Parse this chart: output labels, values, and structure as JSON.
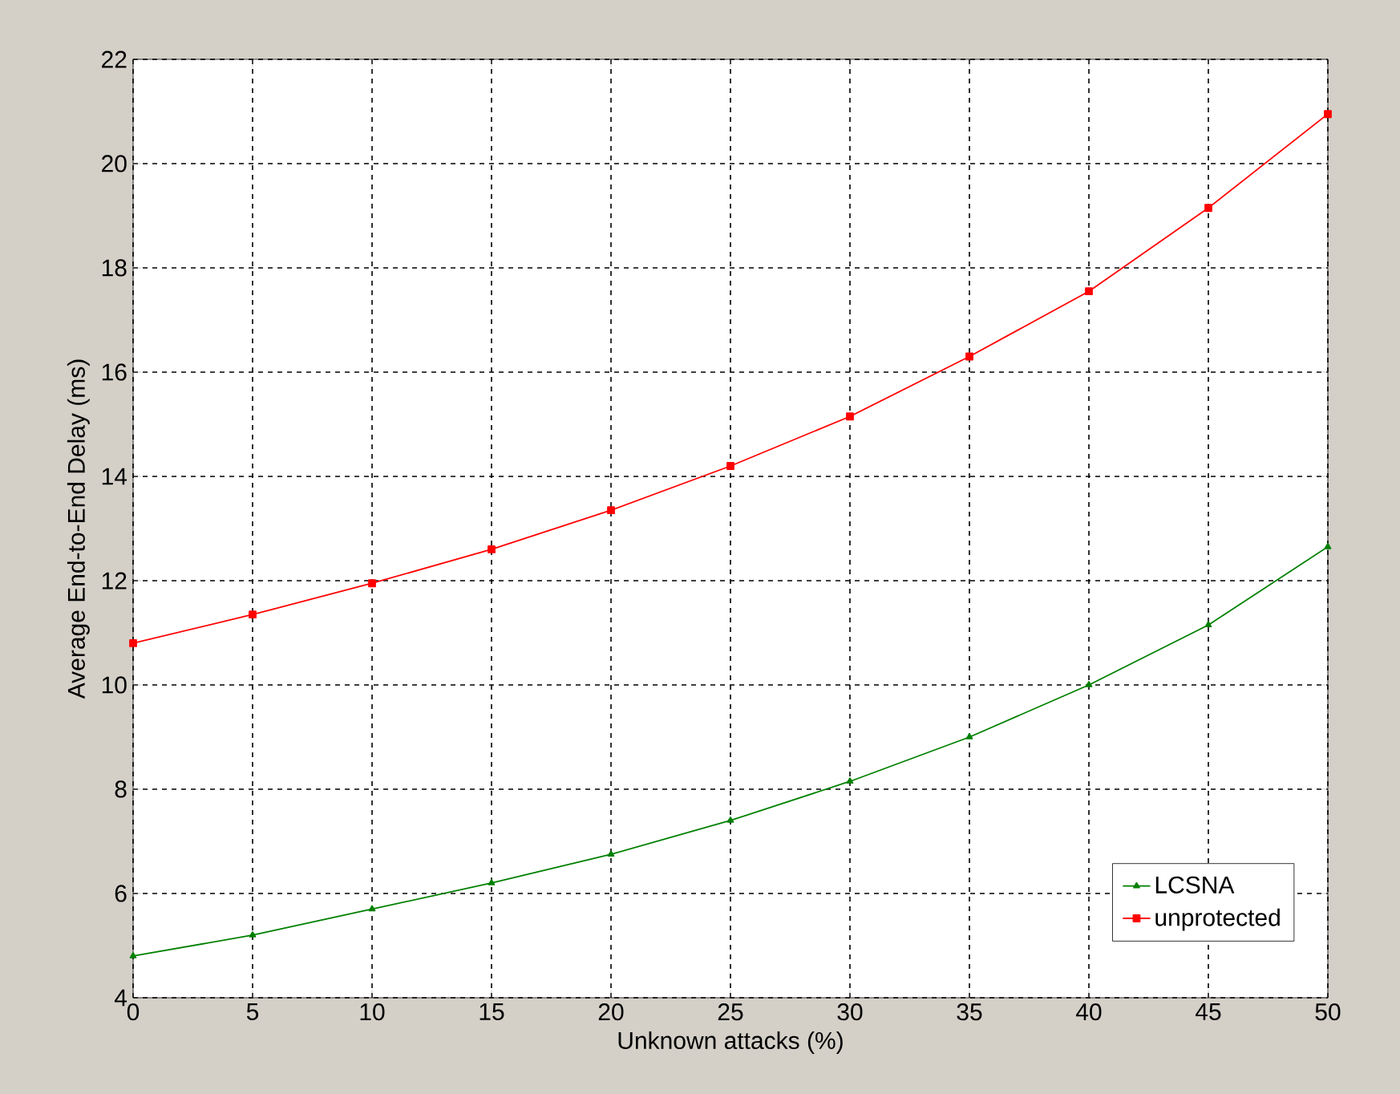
{
  "chart_data": {
    "type": "line",
    "xlabel": "Unknown attacks (%)",
    "ylabel": "Average End-to-End Delay (ms)",
    "x": [
      0,
      5,
      10,
      15,
      20,
      25,
      30,
      35,
      40,
      45,
      50
    ],
    "series": [
      {
        "name": "LCSNA",
        "color": "#008000",
        "marker": "triangle",
        "values": [
          4.8,
          5.2,
          5.7,
          6.2,
          6.75,
          7.4,
          8.15,
          9.0,
          10.0,
          11.15,
          12.65
        ]
      },
      {
        "name": "unprotected",
        "color": "#ff0000",
        "marker": "square",
        "values": [
          10.8,
          11.35,
          11.95,
          12.6,
          13.35,
          14.2,
          15.15,
          16.3,
          17.55,
          19.15,
          20.95
        ]
      }
    ],
    "xlim": [
      0,
      50
    ],
    "ylim": [
      4,
      22
    ],
    "xticks": [
      0,
      5,
      10,
      15,
      20,
      25,
      30,
      35,
      40,
      45,
      50
    ],
    "yticks": [
      4,
      6,
      8,
      10,
      12,
      14,
      16,
      18,
      20,
      22
    ],
    "grid": true,
    "legend": "bottom right",
    "line_style": "solid"
  }
}
